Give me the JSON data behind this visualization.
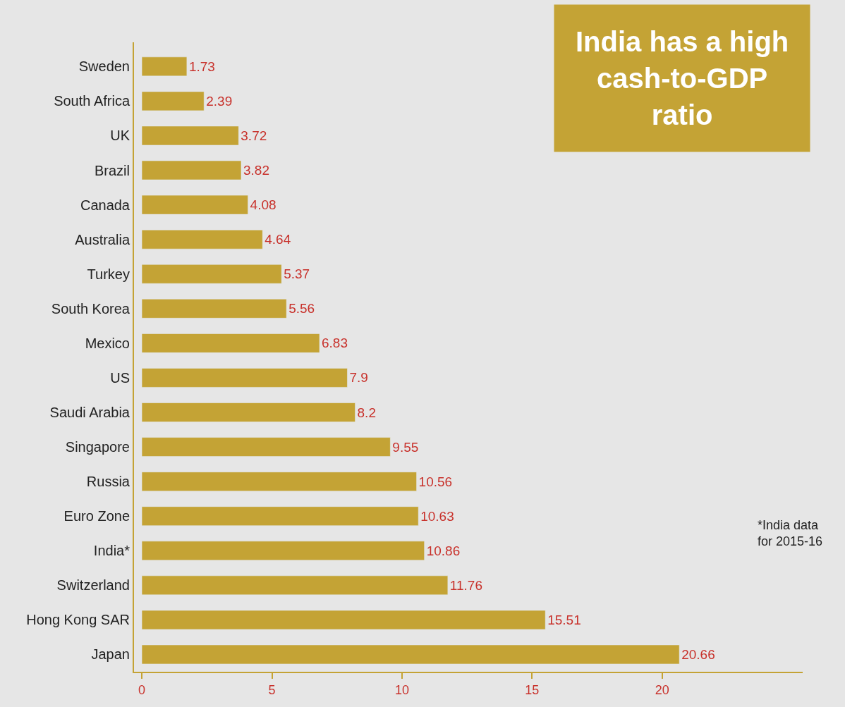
{
  "chart_data": {
    "type": "bar",
    "orientation": "horizontal",
    "title": "India has a high cash-to-GDP ratio",
    "categories": [
      "Sweden",
      "South Africa",
      "UK",
      "Brazil",
      "Canada",
      "Australia",
      "Turkey",
      "South Korea",
      "Mexico",
      "US",
      "Saudi Arabia",
      "Singapore",
      "Russia",
      "Euro Zone",
      "India*",
      "Switzerland",
      "Hong Kong SAR",
      "Japan"
    ],
    "values": [
      1.73,
      2.39,
      3.72,
      3.82,
      4.08,
      4.64,
      5.37,
      5.56,
      6.83,
      7.9,
      8.2,
      9.55,
      10.56,
      10.63,
      10.86,
      11.76,
      15.51,
      20.66
    ],
    "color": "#c4a335",
    "data_labels": true,
    "xlim": [
      -0.3,
      25.4
    ],
    "xticks": [
      0,
      5,
      10,
      15,
      20
    ],
    "grid": false,
    "annotations": [
      "*India data for 2015-16"
    ]
  }
}
